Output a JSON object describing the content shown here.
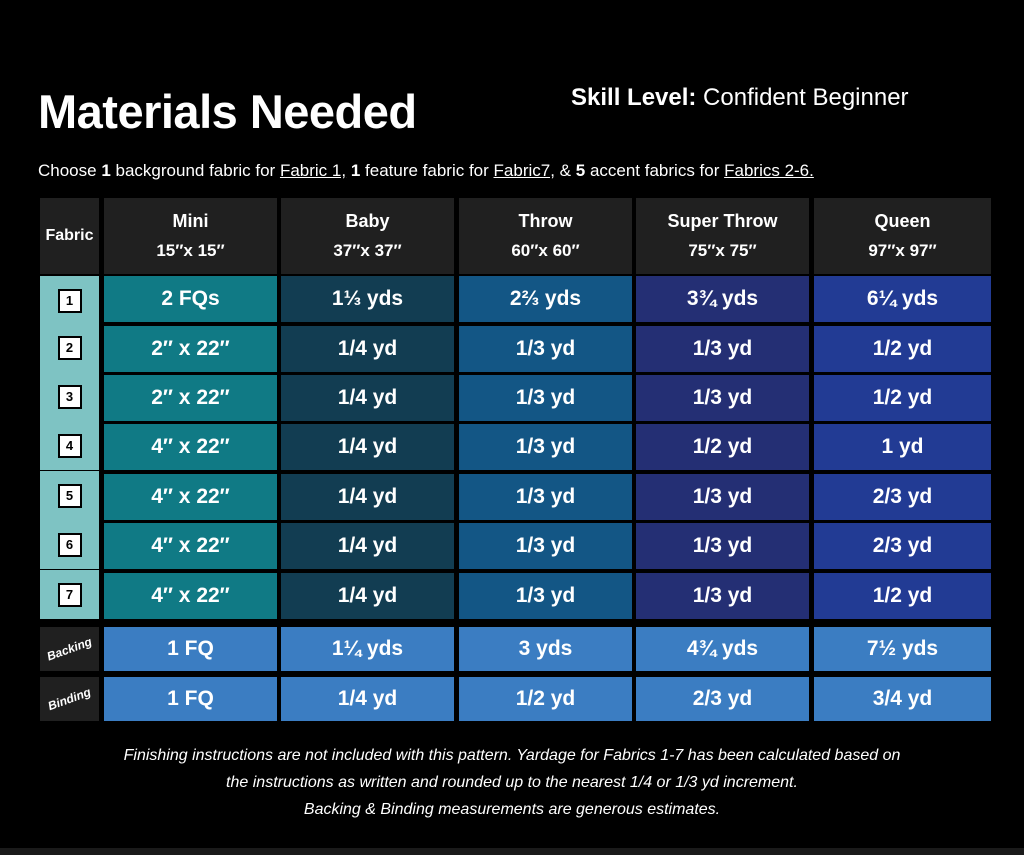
{
  "title": "Materials Needed",
  "skill": {
    "label": "Skill Level:",
    "value": " Confident Beginner"
  },
  "intro": {
    "t1": "Choose ",
    "n1": "1",
    "t2": " background fabric for ",
    "l1": "Fabric 1,",
    "t3": " ",
    "n2": "1",
    "t4": " feature fabric for ",
    "l2": "Fabric7,",
    "t5": " &  ",
    "n3": "5",
    "t6": " accent fabrics for ",
    "l3": "Fabrics 2-6."
  },
  "table": {
    "fabric_header": "Fabric",
    "columns": [
      {
        "name": "Mini",
        "size": "15″x 15″"
      },
      {
        "name": "Baby",
        "size": "37″x 37″"
      },
      {
        "name": "Throw",
        "size": "60″x 60″"
      },
      {
        "name": "Super Throw",
        "size": "75″x 75″"
      },
      {
        "name": "Queen",
        "size": "97″x 97″"
      }
    ],
    "rows": [
      {
        "fabric": "1",
        "values": [
          "2 FQs",
          "1⅓ yds",
          "2⅔ yds",
          "3¾ yds",
          "6¼ yds"
        ]
      },
      {
        "fabric": "2",
        "values": [
          "2″ x 22″",
          "1/4 yd",
          "1/3 yd",
          "1/3 yd",
          "1/2 yd"
        ]
      },
      {
        "fabric": "3",
        "values": [
          "2″ x 22″",
          "1/4 yd",
          "1/3 yd",
          "1/3 yd",
          "1/2 yd"
        ]
      },
      {
        "fabric": "4",
        "values": [
          "4″ x 22″",
          "1/4 yd",
          "1/3 yd",
          "1/2 yd",
          "1 yd"
        ]
      },
      {
        "fabric": "5",
        "values": [
          "4″ x 22″",
          "1/4 yd",
          "1/3 yd",
          "1/3 yd",
          "2/3 yd"
        ]
      },
      {
        "fabric": "6",
        "values": [
          "4″ x 22″",
          "1/4 yd",
          "1/3 yd",
          "1/3 yd",
          "2/3 yd"
        ]
      },
      {
        "fabric": "7",
        "values": [
          "4″ x 22″",
          "1/4 yd",
          "1/3 yd",
          "1/3 yd",
          "1/2 yd"
        ]
      }
    ],
    "extras": [
      {
        "label": "Backing",
        "values": [
          "1 FQ",
          "1¼ yds",
          "3 yds",
          "4¾ yds",
          "7½ yds"
        ]
      },
      {
        "label": "Binding",
        "values": [
          "1 FQ",
          "1/4 yd",
          "1/2 yd",
          "2/3 yd",
          "3/4 yd"
        ]
      }
    ]
  },
  "footer": {
    "line1": "Finishing instructions are not included with this pattern. Yardage for Fabrics 1-7 has been calculated based on",
    "line2": "the instructions as written and rounded up to the nearest 1/4 or 1/3 yd increment.",
    "line3": "Backing & Binding measurements are generous estimates."
  },
  "colors": {
    "background": "#000000",
    "mini": "#107a85",
    "baby": "#123d52",
    "throw": "#135685",
    "super_throw": "#242f74",
    "queen": "#223b94",
    "backing_binding": "#3b7dc2",
    "fabric_column": "#7ec3c3"
  }
}
